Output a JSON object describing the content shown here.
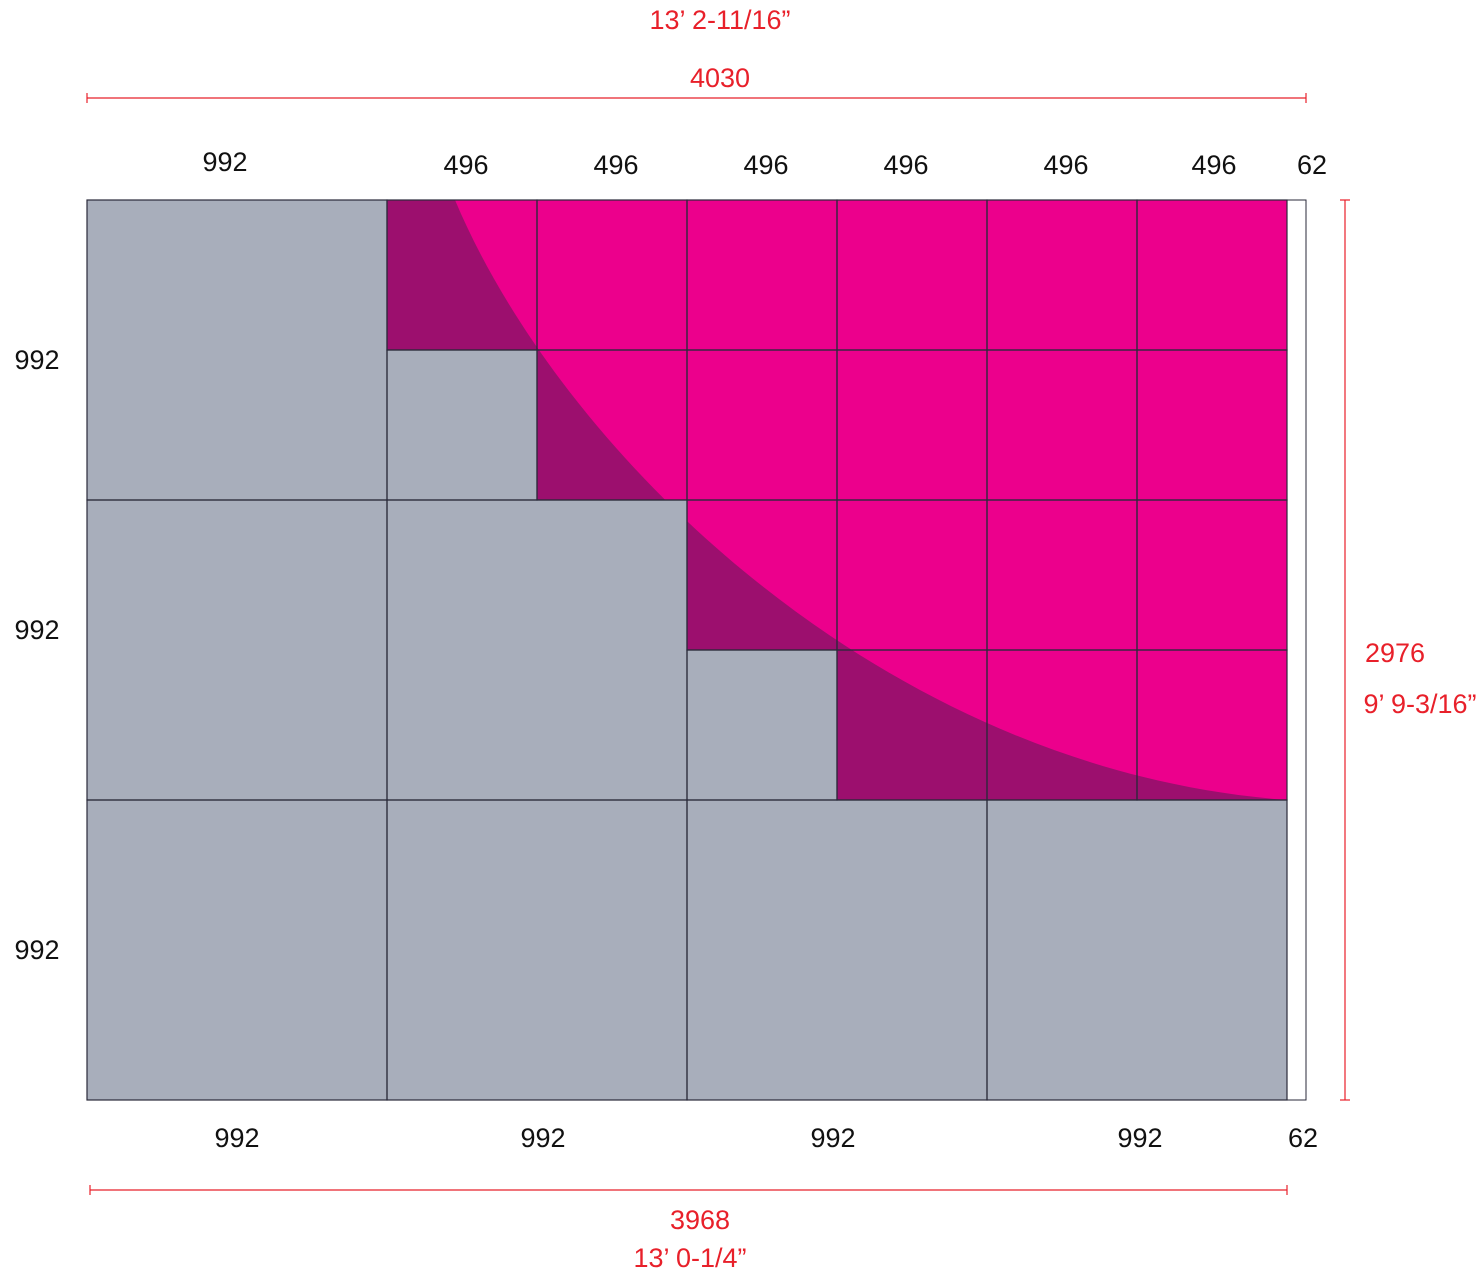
{
  "overall": {
    "top": {
      "imperial": "13’ 2-11/16”",
      "metric": "4030"
    },
    "right": {
      "metric": "2976",
      "imperial": "9’ 9-3/16”"
    },
    "bottom": {
      "metric": "3968",
      "imperial": "13’ 0-1/4”"
    }
  },
  "top_labels": [
    "992",
    "496",
    "496",
    "496",
    "496",
    "496",
    "496",
    "62"
  ],
  "left_labels": [
    "992",
    "992",
    "992"
  ],
  "bottom_labels": [
    "992",
    "992",
    "992",
    "992",
    "62"
  ]
}
